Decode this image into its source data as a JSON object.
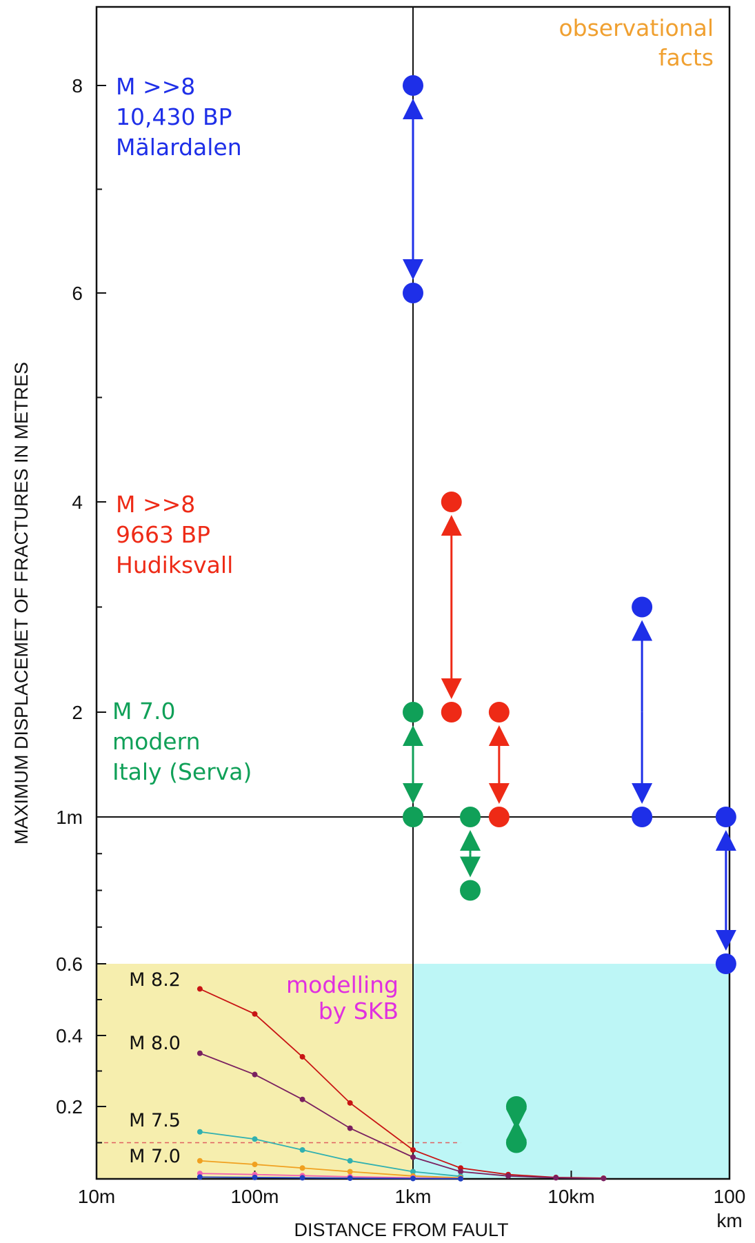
{
  "chart_data": {
    "type": "scatter",
    "title": "",
    "xlabel": "DISTANCE FROM FAULT",
    "ylabel": "MAXIMUM DISPLACEMET OF FRACTURES IN METRES",
    "x_ticks": [
      {
        "value": 10,
        "label": "10m"
      },
      {
        "value": 100,
        "label": "100m"
      },
      {
        "value": 1000,
        "label": "1km"
      },
      {
        "value": 10000,
        "label": "10km"
      },
      {
        "value": 100000,
        "label": "100"
      }
    ],
    "x_tick_extra": "km",
    "y_ticks": [
      {
        "value": 0.2,
        "label": "0.2"
      },
      {
        "value": 0.4,
        "label": "0.4"
      },
      {
        "value": 0.6,
        "label": "0.6"
      },
      {
        "value": 1,
        "label": "1m"
      },
      {
        "value": 2,
        "label": "2"
      },
      {
        "value": 4,
        "label": "4"
      },
      {
        "value": 6,
        "label": "6"
      },
      {
        "value": 8,
        "label": "8"
      }
    ],
    "colors": {
      "malardalen": "#1e2fe8",
      "hudiksvall": "#ee2a16",
      "italy": "#10a058",
      "observational": "#f0a030",
      "modelling": "#e030e0",
      "model_region": "#f6eeae",
      "model_region_far": "#bdf6f6",
      "m82": "#c81414",
      "m80": "#7a2060",
      "m75": "#30b0b0",
      "m70": "#f0a020",
      "pink": "#f060b0"
    },
    "annotations": {
      "observational": "observational\nfacts",
      "modelling": "modelling\nby SKB"
    },
    "events": [
      {
        "name": "malardalen",
        "label": [
          "M >>8",
          "10,430 BP",
          "Mälardalen"
        ],
        "ranges": [
          {
            "x": 1000,
            "y_low": 6,
            "y_high": 8
          },
          {
            "x": 28000,
            "y_low": 1,
            "y_high": 3
          },
          {
            "x": 95000,
            "y_low": 0.6,
            "y_high": 1
          }
        ]
      },
      {
        "name": "hudiksvall",
        "label": [
          "M >>8",
          "9663 BP",
          "Hudiksvall"
        ],
        "ranges": [
          {
            "x": 1750,
            "y_low": 2,
            "y_high": 4
          },
          {
            "x": 3500,
            "y_low": 1,
            "y_high": 2
          }
        ]
      },
      {
        "name": "italy",
        "label": [
          "M 7.0",
          "modern",
          "Italy (Serva)"
        ],
        "ranges": [
          {
            "x": 1000,
            "y_low": 1,
            "y_high": 2
          },
          {
            "x": 2300,
            "y_low": 0.8,
            "y_high": 1
          },
          {
            "x": 4500,
            "y_low": 0.1,
            "y_high": 0.2
          }
        ]
      }
    ],
    "model_curves": [
      {
        "name": "M 8.2",
        "x": [
          45,
          100,
          200,
          400,
          1000,
          2000,
          4000,
          8000,
          16000
        ],
        "y": [
          0.53,
          0.46,
          0.34,
          0.21,
          0.08,
          0.03,
          0.012,
          0.004,
          0.002
        ]
      },
      {
        "name": "M 8.0",
        "x": [
          45,
          100,
          200,
          400,
          1000,
          2000,
          4000,
          8000,
          16000
        ],
        "y": [
          0.35,
          0.29,
          0.22,
          0.14,
          0.06,
          0.02,
          0.008,
          0.003,
          0.001
        ]
      },
      {
        "name": "M 7.5",
        "x": [
          45,
          100,
          200,
          400,
          1000,
          2000
        ],
        "y": [
          0.13,
          0.11,
          0.08,
          0.05,
          0.02,
          0.007
        ]
      },
      {
        "name": "M 7.0",
        "x": [
          45,
          100,
          200,
          400,
          1000,
          2000
        ],
        "y": [
          0.05,
          0.04,
          0.03,
          0.02,
          0.008,
          0.003
        ]
      },
      {
        "name": "",
        "x": [
          45,
          100,
          200,
          400,
          1000,
          2000
        ],
        "y": [
          0.015,
          0.012,
          0.009,
          0.006,
          0.003,
          0.001
        ]
      },
      {
        "name": "",
        "x": [
          45,
          100,
          200,
          400,
          1000,
          2000
        ],
        "y": [
          0.005,
          0.004,
          0.003,
          0.002,
          0.001,
          0.0005
        ]
      }
    ],
    "reference_line": {
      "y": 0.1,
      "x_from": 10,
      "x_to": 2000
    }
  }
}
